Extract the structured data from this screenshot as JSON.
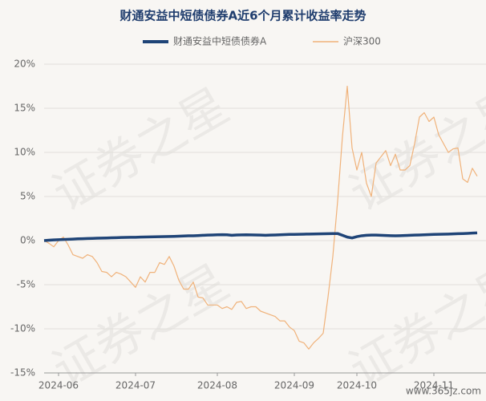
{
  "chart_data": {
    "type": "line",
    "title": "财通安益中短债债券A近6个月累计收益率走势",
    "watermark": "证券之星",
    "source_mark": "www.365jz.com",
    "categories": [
      null,
      null,
      null,
      "2024-06",
      null,
      null,
      null,
      null,
      null,
      null,
      null,
      null,
      null,
      null,
      null,
      null,
      null,
      null,
      null,
      "2024-07",
      null,
      null,
      null,
      null,
      null,
      null,
      null,
      null,
      null,
      null,
      null,
      null,
      null,
      null,
      null,
      null,
      "2024-08",
      null,
      null,
      null,
      null,
      null,
      null,
      null,
      null,
      null,
      null,
      null,
      null,
      null,
      null,
      null,
      "2024-09",
      null,
      null,
      null,
      null,
      null,
      null,
      null,
      null,
      null,
      null,
      null,
      null,
      "2024-10",
      null,
      null,
      null,
      null,
      null,
      null,
      null,
      null,
      null,
      null,
      null,
      null,
      null,
      null,
      null,
      "2024-11",
      null,
      null,
      null,
      null,
      null,
      null,
      null,
      null,
      null
    ],
    "series": [
      {
        "name": "财通安益中短债债券A",
        "color": "#1f4477",
        "values": [
          0,
          0.05,
          0.08,
          0.1,
          0.12,
          0.15,
          0.17,
          0.2,
          0.22,
          0.24,
          0.25,
          0.27,
          0.28,
          0.3,
          0.32,
          0.33,
          0.35,
          0.36,
          0.37,
          0.38,
          0.4,
          0.41,
          0.42,
          0.43,
          0.44,
          0.45,
          0.47,
          0.48,
          0.5,
          0.52,
          0.54,
          0.55,
          0.57,
          0.6,
          0.62,
          0.64,
          0.66,
          0.67,
          0.66,
          0.6,
          0.64,
          0.65,
          0.66,
          0.65,
          0.64,
          0.62,
          0.6,
          0.62,
          0.64,
          0.66,
          0.68,
          0.7,
          0.71,
          0.72,
          0.73,
          0.74,
          0.75,
          0.76,
          0.77,
          0.78,
          0.79,
          0.8,
          0.6,
          0.4,
          0.3,
          0.45,
          0.55,
          0.6,
          0.62,
          0.63,
          0.6,
          0.58,
          0.56,
          0.55,
          0.56,
          0.58,
          0.6,
          0.62,
          0.64,
          0.66,
          0.68,
          0.7,
          0.72,
          0.73,
          0.74,
          0.76,
          0.78,
          0.8,
          0.82,
          0.85,
          0.88
        ]
      },
      {
        "name": "沪深300",
        "color": "#f0b27a",
        "values": [
          0,
          -0.3,
          -0.7,
          0,
          0.4,
          -0.5,
          -1.6,
          -1.8,
          -2,
          -1.6,
          -1.8,
          -2.5,
          -3.5,
          -3.6,
          -4.1,
          -3.6,
          -3.8,
          -4.1,
          -4.7,
          -5.3,
          -4.1,
          -4.7,
          -3.6,
          -3.6,
          -2.5,
          -2.7,
          -1.8,
          -2.9,
          -4.5,
          -5.5,
          -5.5,
          -4.7,
          -6.4,
          -6.5,
          -7.3,
          -7.3,
          -7.3,
          -7.7,
          -7.5,
          -7.8,
          -7,
          -6.9,
          -7.7,
          -7.5,
          -7.5,
          -8,
          -8.2,
          -8.4,
          -8.6,
          -9.1,
          -9.1,
          -9.8,
          -10.2,
          -11.4,
          -11.6,
          -12.3,
          -11.6,
          -11.1,
          -10.5,
          -6.4,
          -1.8,
          4.5,
          11.8,
          17.5,
          10.5,
          8,
          10,
          6.5,
          5,
          8.8,
          9.5,
          10.2,
          8.5,
          9.8,
          8,
          8,
          8.5,
          11,
          14,
          14.5,
          13.5,
          14,
          12,
          11,
          10,
          10.4,
          10.5,
          7,
          6.6,
          8.2,
          7.3
        ]
      }
    ],
    "ylim": [
      -15,
      20
    ],
    "yticks": [
      {
        "value": -15,
        "label": "-15%"
      },
      {
        "value": -10,
        "label": "-10%"
      },
      {
        "value": -5,
        "label": "-5%"
      },
      {
        "value": 0,
        "label": "0%"
      },
      {
        "value": 5,
        "label": "5%"
      },
      {
        "value": 10,
        "label": "10%"
      },
      {
        "value": 15,
        "label": "15%"
      },
      {
        "value": 20,
        "label": "20%"
      }
    ],
    "grid": true
  }
}
